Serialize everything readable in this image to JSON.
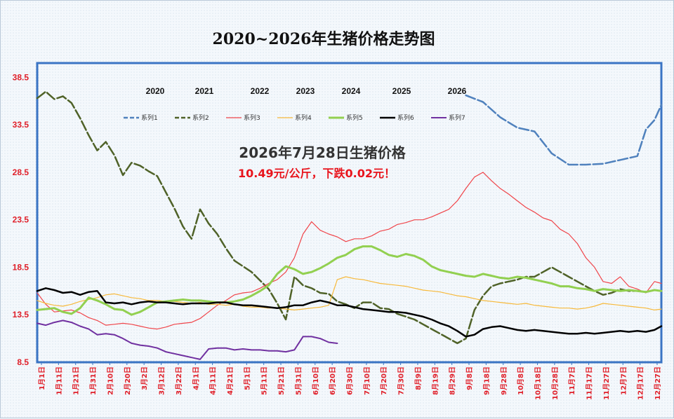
{
  "chart_data": {
    "type": "line",
    "title": "2020~2026年生猪价格走势图",
    "ylim": [
      8.5,
      40.0
    ],
    "yticks": [
      "8.5",
      "13.5",
      "18.5",
      "23.5",
      "28.5",
      "33.5",
      "38.5"
    ],
    "xticks": [
      "1月1日",
      "1月11日",
      "1月21日",
      "1月31日",
      "2月10日",
      "2月20日",
      "3月2日",
      "3月12日",
      "3月22日",
      "4月1日",
      "4月11日",
      "4月21日",
      "5月1日",
      "5月11日",
      "5月21日",
      "5月31日",
      "6月10日",
      "6月20日",
      "6月30日",
      "7月10日",
      "7月20日",
      "7月30日",
      "8月9日",
      "8月19日",
      "8月29日",
      "9月8日",
      "9月18日",
      "9月28日",
      "10月8日",
      "10月18日",
      "10月28日",
      "11月7日",
      "11月17日",
      "11月27日",
      "12月7日",
      "12月17日",
      "12月27日"
    ],
    "year_labels": [
      "2020",
      "2021",
      "2022",
      "2023",
      "2024",
      "2025",
      "2026"
    ],
    "annotation": {
      "line1": "2026年7月28日生猪价格",
      "line2": "10.49元/公斤，下跌0.02元！"
    },
    "series": [
      {
        "name": "系列1",
        "color": "#4f81bd",
        "style": "dashed",
        "width": 2.5,
        "x": [
          0,
          15,
          22,
          29,
          35,
          45,
          52,
          60,
          70,
          80,
          90,
          100,
          110,
          120,
          130,
          140,
          150,
          160,
          170,
          180,
          190,
          200,
          210,
          220,
          230,
          240,
          250,
          260,
          270,
          280,
          290,
          300,
          310,
          320,
          330,
          340,
          350,
          355,
          360,
          364
        ],
        "y": [
          null,
          null,
          null,
          null,
          null,
          null,
          null,
          null,
          null,
          null,
          null,
          null,
          null,
          null,
          null,
          null,
          null,
          null,
          null,
          null,
          null,
          null,
          null,
          null,
          null,
          null,
          36.6,
          35.9,
          34.3,
          33.2,
          32.8,
          30.5,
          29.3,
          29.3,
          29.4,
          29.8,
          30.2,
          33.0,
          34.0,
          35.6
        ]
      },
      {
        "name": "系列2",
        "color": "#4f6228",
        "style": "dashed",
        "width": 2.5,
        "x": [
          0,
          5,
          10,
          15,
          20,
          25,
          30,
          35,
          40,
          45,
          50,
          55,
          60,
          65,
          70,
          75,
          80,
          85,
          90,
          95,
          100,
          105,
          110,
          115,
          120,
          125,
          130,
          135,
          140,
          145,
          150,
          155,
          160,
          165,
          170,
          175,
          180,
          185,
          190,
          195,
          200,
          205,
          210,
          215,
          220,
          225,
          230,
          235,
          240,
          245,
          250,
          255,
          260,
          265,
          270,
          275,
          280,
          285,
          290,
          295,
          300,
          305,
          310,
          315,
          320,
          325,
          330,
          335,
          340,
          345,
          350,
          355,
          360,
          364
        ],
        "y": [
          36.3,
          37.0,
          36.2,
          36.5,
          35.8,
          34.2,
          32.4,
          30.8,
          31.7,
          30.3,
          28.2,
          29.5,
          29.2,
          28.6,
          28.1,
          26.4,
          24.7,
          22.8,
          21.5,
          24.6,
          23.1,
          22.0,
          20.5,
          19.2,
          18.6,
          18.0,
          17.1,
          16.2,
          14.7,
          13.0,
          17.5,
          16.6,
          16.3,
          15.8,
          15.7,
          14.9,
          14.6,
          14.2,
          14.8,
          14.8,
          14.2,
          14.1,
          13.6,
          13.3,
          13.0,
          12.5,
          12.0,
          11.5,
          11.0,
          10.5,
          11.0,
          14.0,
          15.5,
          16.5,
          16.8,
          17.0,
          17.2,
          17.5,
          17.5,
          18.0,
          18.5,
          18.0,
          17.5,
          17.0,
          16.5,
          16.0,
          15.6,
          15.8,
          16.2,
          16.0,
          16.0,
          15.9,
          16.1,
          16.0
        ]
      },
      {
        "name": "系列3",
        "color": "#f0454a",
        "style": "solid",
        "width": 1.2,
        "x": [
          0,
          5,
          10,
          15,
          20,
          25,
          30,
          35,
          40,
          45,
          50,
          55,
          60,
          65,
          70,
          75,
          80,
          85,
          90,
          95,
          100,
          105,
          110,
          115,
          120,
          125,
          130,
          135,
          140,
          145,
          150,
          155,
          160,
          165,
          170,
          175,
          180,
          185,
          190,
          195,
          200,
          205,
          210,
          215,
          220,
          225,
          230,
          235,
          240,
          245,
          250,
          255,
          260,
          265,
          270,
          275,
          280,
          285,
          290,
          295,
          300,
          305,
          310,
          315,
          320,
          325,
          330,
          335,
          340,
          345,
          350,
          355,
          360,
          364
        ],
        "y": [
          15.8,
          14.6,
          13.8,
          13.9,
          14.0,
          13.7,
          13.2,
          12.9,
          12.4,
          12.5,
          12.6,
          12.5,
          12.3,
          12.1,
          12.0,
          12.2,
          12.5,
          12.6,
          12.7,
          13.1,
          13.8,
          14.5,
          15.0,
          15.6,
          15.8,
          15.9,
          16.3,
          16.8,
          17.2,
          18.0,
          19.5,
          22.0,
          23.3,
          22.4,
          22.0,
          21.7,
          21.2,
          21.5,
          21.5,
          21.8,
          22.3,
          22.5,
          23.0,
          23.2,
          23.5,
          23.5,
          23.8,
          24.2,
          24.6,
          25.5,
          26.8,
          28.0,
          28.5,
          27.6,
          26.8,
          26.2,
          25.5,
          24.8,
          24.3,
          23.7,
          23.4,
          22.5,
          22.0,
          21.0,
          19.5,
          18.5,
          17.0,
          16.8,
          17.5,
          16.5,
          16.2,
          15.8,
          17.0,
          16.8
        ]
      },
      {
        "name": "系列4",
        "color": "#f7b93a",
        "style": "solid",
        "width": 1.2,
        "x": [
          0,
          5,
          10,
          15,
          20,
          25,
          30,
          35,
          40,
          45,
          50,
          55,
          60,
          65,
          70,
          75,
          80,
          85,
          90,
          95,
          100,
          105,
          110,
          115,
          120,
          125,
          130,
          135,
          140,
          145,
          150,
          155,
          160,
          165,
          170,
          175,
          180,
          185,
          190,
          195,
          200,
          205,
          210,
          215,
          220,
          225,
          230,
          235,
          240,
          245,
          250,
          255,
          260,
          265,
          270,
          275,
          280,
          285,
          290,
          295,
          300,
          305,
          310,
          315,
          320,
          325,
          330,
          335,
          340,
          345,
          350,
          355,
          360,
          364
        ],
        "y": [
          15.0,
          14.7,
          14.5,
          14.4,
          14.6,
          14.9,
          15.1,
          15.3,
          15.6,
          15.7,
          15.5,
          15.3,
          15.2,
          15.0,
          15.0,
          14.9,
          14.9,
          14.8,
          14.7,
          14.8,
          14.6,
          14.6,
          14.5,
          14.6,
          14.4,
          14.3,
          14.3,
          14.2,
          14.2,
          14.1,
          14.0,
          14.1,
          14.2,
          14.3,
          14.5,
          17.2,
          17.5,
          17.3,
          17.2,
          17.0,
          16.8,
          16.7,
          16.6,
          16.5,
          16.3,
          16.1,
          16.0,
          15.9,
          15.7,
          15.5,
          15.4,
          15.2,
          15.0,
          14.9,
          14.8,
          14.7,
          14.6,
          14.7,
          14.5,
          14.4,
          14.3,
          14.2,
          14.2,
          14.1,
          14.2,
          14.4,
          14.7,
          14.6,
          14.5,
          14.4,
          14.3,
          14.2,
          14.0,
          14.1
        ]
      },
      {
        "name": "系列5",
        "color": "#92d050",
        "style": "solid",
        "width": 3,
        "x": [
          0,
          5,
          10,
          15,
          20,
          25,
          30,
          35,
          40,
          45,
          50,
          55,
          60,
          65,
          70,
          75,
          80,
          85,
          90,
          95,
          100,
          105,
          110,
          115,
          120,
          125,
          130,
          135,
          140,
          145,
          150,
          155,
          160,
          165,
          170,
          175,
          180,
          185,
          190,
          195,
          200,
          205,
          210,
          215,
          220,
          225,
          230,
          235,
          240,
          245,
          250,
          255,
          260,
          265,
          270,
          275,
          280,
          285,
          290,
          295,
          300,
          305,
          310,
          315,
          320,
          325,
          330,
          335,
          340,
          345,
          350,
          355,
          360,
          364
        ],
        "y": [
          14.0,
          14.1,
          14.2,
          13.8,
          13.6,
          14.2,
          15.3,
          15.0,
          14.6,
          14.1,
          14.0,
          13.5,
          13.8,
          14.3,
          14.8,
          14.9,
          15.0,
          15.1,
          15.0,
          15.0,
          14.9,
          14.8,
          14.8,
          14.9,
          15.1,
          15.5,
          16.0,
          16.6,
          17.8,
          18.6,
          18.3,
          17.8,
          18.0,
          18.4,
          18.9,
          19.5,
          19.8,
          20.4,
          20.7,
          20.7,
          20.3,
          19.8,
          19.6,
          19.9,
          19.7,
          19.3,
          18.6,
          18.2,
          18.0,
          17.8,
          17.6,
          17.5,
          17.8,
          17.6,
          17.4,
          17.3,
          17.5,
          17.4,
          17.2,
          17.0,
          16.8,
          16.5,
          16.5,
          16.3,
          16.2,
          16.0,
          16.2,
          16.1,
          16.0,
          16.1,
          16.0,
          15.9,
          16.1,
          16.0
        ]
      },
      {
        "name": "系列6",
        "color": "#000000",
        "style": "solid",
        "width": 2.5,
        "x": [
          0,
          5,
          10,
          15,
          20,
          25,
          30,
          35,
          40,
          45,
          50,
          55,
          60,
          65,
          70,
          75,
          80,
          85,
          90,
          95,
          100,
          105,
          110,
          115,
          120,
          125,
          130,
          135,
          140,
          145,
          150,
          155,
          160,
          165,
          170,
          175,
          180,
          185,
          190,
          195,
          200,
          205,
          210,
          215,
          220,
          225,
          230,
          235,
          240,
          245,
          250,
          255,
          260,
          265,
          270,
          275,
          280,
          285,
          290,
          295,
          300,
          305,
          310,
          315,
          320,
          325,
          330,
          335,
          340,
          345,
          350,
          355,
          360,
          364
        ],
        "y": [
          16.0,
          16.3,
          16.1,
          15.8,
          15.9,
          15.6,
          15.9,
          16.0,
          14.8,
          14.7,
          14.8,
          14.6,
          14.8,
          14.9,
          14.8,
          14.8,
          14.7,
          14.6,
          14.7,
          14.7,
          14.7,
          14.8,
          14.8,
          14.6,
          14.5,
          14.5,
          14.4,
          14.3,
          14.2,
          14.3,
          14.5,
          14.5,
          14.8,
          15.0,
          14.8,
          14.5,
          14.5,
          14.3,
          14.1,
          14.0,
          13.9,
          13.8,
          13.8,
          13.7,
          13.5,
          13.3,
          13.0,
          12.6,
          12.3,
          11.8,
          11.2,
          11.4,
          12.0,
          12.2,
          12.3,
          12.1,
          11.9,
          11.8,
          11.9,
          11.8,
          11.7,
          11.6,
          11.5,
          11.5,
          11.6,
          11.5,
          11.6,
          11.7,
          11.8,
          11.7,
          11.8,
          11.7,
          11.9,
          12.3
        ]
      },
      {
        "name": "系列7",
        "color": "#7030a0",
        "style": "solid",
        "width": 2,
        "x": [
          0,
          5,
          10,
          15,
          20,
          25,
          30,
          35,
          40,
          45,
          50,
          55,
          60,
          65,
          70,
          75,
          80,
          85,
          90,
          95,
          100,
          105,
          110,
          115,
          120,
          125,
          130,
          135,
          140,
          145,
          150,
          155,
          160,
          165,
          170,
          175,
          180,
          185,
          190,
          195,
          200,
          205,
          210,
          215,
          220,
          225,
          230,
          235,
          240,
          245,
          250,
          255,
          260,
          265,
          270,
          275,
          280,
          285,
          290,
          295,
          300,
          305,
          310,
          315,
          320,
          325,
          330,
          335,
          340,
          345,
          350,
          355,
          360,
          364
        ],
        "y": [
          12.6,
          12.4,
          12.7,
          12.9,
          12.7,
          12.3,
          12.0,
          11.4,
          11.5,
          11.4,
          11.0,
          10.5,
          10.3,
          10.2,
          10.0,
          9.6,
          9.4,
          9.2,
          9.0,
          8.8,
          9.9,
          10.0,
          10.0,
          9.8,
          9.9,
          9.8,
          9.8,
          9.7,
          9.7,
          9.6,
          9.8,
          11.2,
          11.2,
          11.0,
          10.6,
          10.49,
          null,
          null,
          null,
          null,
          null,
          null,
          null,
          null,
          null,
          null,
          null,
          null,
          null,
          null,
          null,
          null,
          null,
          null,
          null,
          null,
          null,
          null,
          null,
          null,
          null,
          null,
          null,
          null,
          null,
          null,
          null,
          null,
          null,
          null,
          null,
          null,
          null,
          null
        ]
      }
    ]
  }
}
